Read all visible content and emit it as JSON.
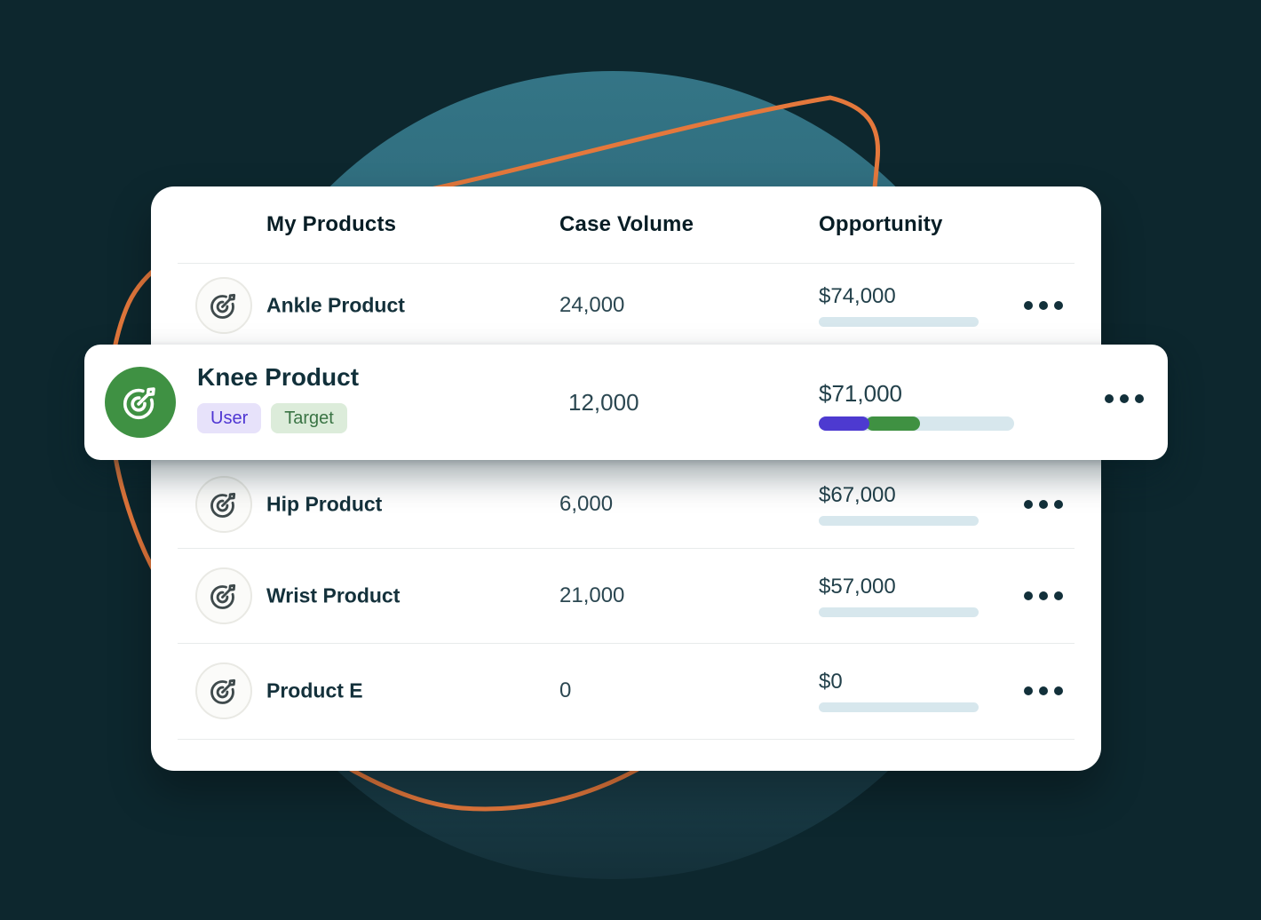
{
  "background": {
    "base_color": "#0d272e",
    "circle_top_color": "#347586",
    "circle_bottom_color": "#143039",
    "orange_line_color": "#e4783c"
  },
  "table": {
    "columns": [
      "My Products",
      "Case Volume",
      "Opportunity"
    ],
    "progress_colors": {
      "user": "#4d3ad0",
      "target": "#3f9142",
      "track": "#d7e7ed"
    },
    "rows": [
      {
        "name": "Ankle Product",
        "case_volume": "24,000",
        "opportunity": "$74,000",
        "progress": {
          "user_pct": 0,
          "target_pct": 0
        }
      },
      {
        "name": "Knee Product",
        "case_volume": "12,000",
        "opportunity": "$71,000",
        "highlighted": true,
        "badges": [
          {
            "label": "User",
            "text_color": "#4e35d3",
            "bg_color": "#e7e2fa"
          },
          {
            "label": "Target",
            "text_color": "#3a7444",
            "bg_color": "#dcecda"
          }
        ],
        "progress": {
          "user_pct": 26,
          "target_pct": 26
        },
        "icon_color": "#3f9143"
      },
      {
        "name": "Hip Product",
        "case_volume": "6,000",
        "opportunity": "$67,000",
        "progress": {
          "user_pct": 0,
          "target_pct": 0
        }
      },
      {
        "name": "Wrist Product",
        "case_volume": "21,000",
        "opportunity": "$57,000",
        "progress": {
          "user_pct": 0,
          "target_pct": 0
        }
      },
      {
        "name": "Product E",
        "case_volume": "0",
        "opportunity": "$0",
        "progress": {
          "user_pct": 0,
          "target_pct": 0
        }
      }
    ]
  }
}
